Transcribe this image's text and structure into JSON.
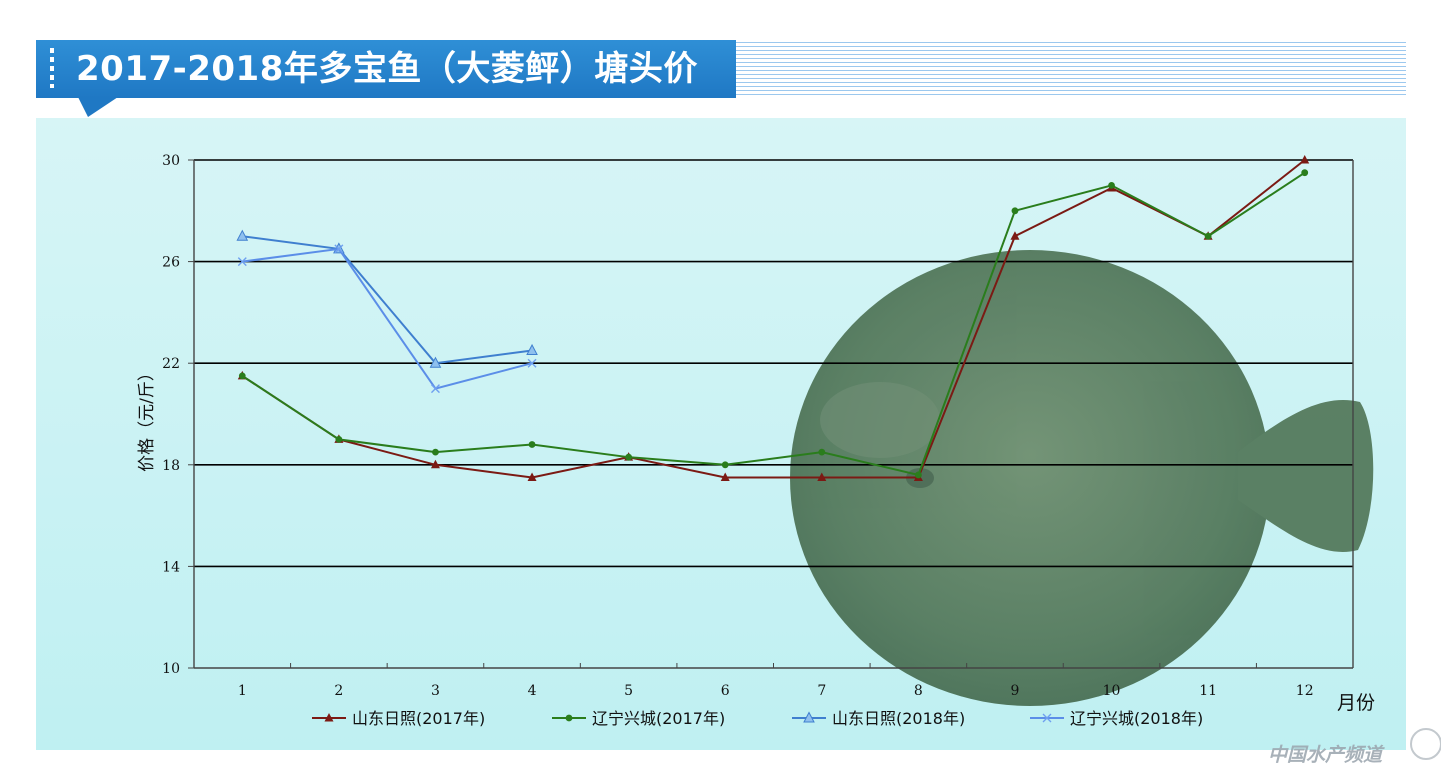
{
  "header": {
    "title": "2017-2018年多宝鱼（大菱鲆）塘头价"
  },
  "watermark": "中国水产频道",
  "colors": {
    "banner": "#1f78c4",
    "panel": "#c8f2f4",
    "fish": "#4f7a5c"
  },
  "chart_data": {
    "type": "line",
    "title": "",
    "xlabel": "月份",
    "ylabel": "价格（元/斤）",
    "ylim": [
      10,
      30
    ],
    "yticks": [
      10,
      14,
      18,
      22,
      26,
      30
    ],
    "categories": [
      "1",
      "2",
      "3",
      "4",
      "5",
      "6",
      "7",
      "8",
      "9",
      "10",
      "11",
      "12"
    ],
    "grid": true,
    "legend_position": "bottom",
    "series": [
      {
        "name": "山东日照(2017年)",
        "color": "#7b1a14",
        "marker": "triangle",
        "values": [
          21.5,
          19.0,
          18.0,
          17.5,
          18.3,
          17.5,
          17.5,
          17.5,
          27.0,
          28.9,
          27.0,
          30.0
        ]
      },
      {
        "name": "辽宁兴城(2017年)",
        "color": "#2a7d1c",
        "marker": "circle",
        "values": [
          21.5,
          19.0,
          18.5,
          18.8,
          18.3,
          18.0,
          18.5,
          17.6,
          28.0,
          29.0,
          27.0,
          29.5
        ]
      },
      {
        "name": "山东日照(2018年)",
        "color": "#3f7fcf",
        "marker": "triangle-filled-light",
        "values": [
          27.0,
          26.5,
          22.0,
          22.5,
          null,
          null,
          null,
          null,
          null,
          null,
          null,
          null
        ]
      },
      {
        "name": "辽宁兴城(2018年)",
        "color": "#5b8ee8",
        "marker": "x",
        "values": [
          26.0,
          26.5,
          21.0,
          22.0,
          null,
          null,
          null,
          null,
          null,
          null,
          null,
          null
        ]
      }
    ]
  }
}
